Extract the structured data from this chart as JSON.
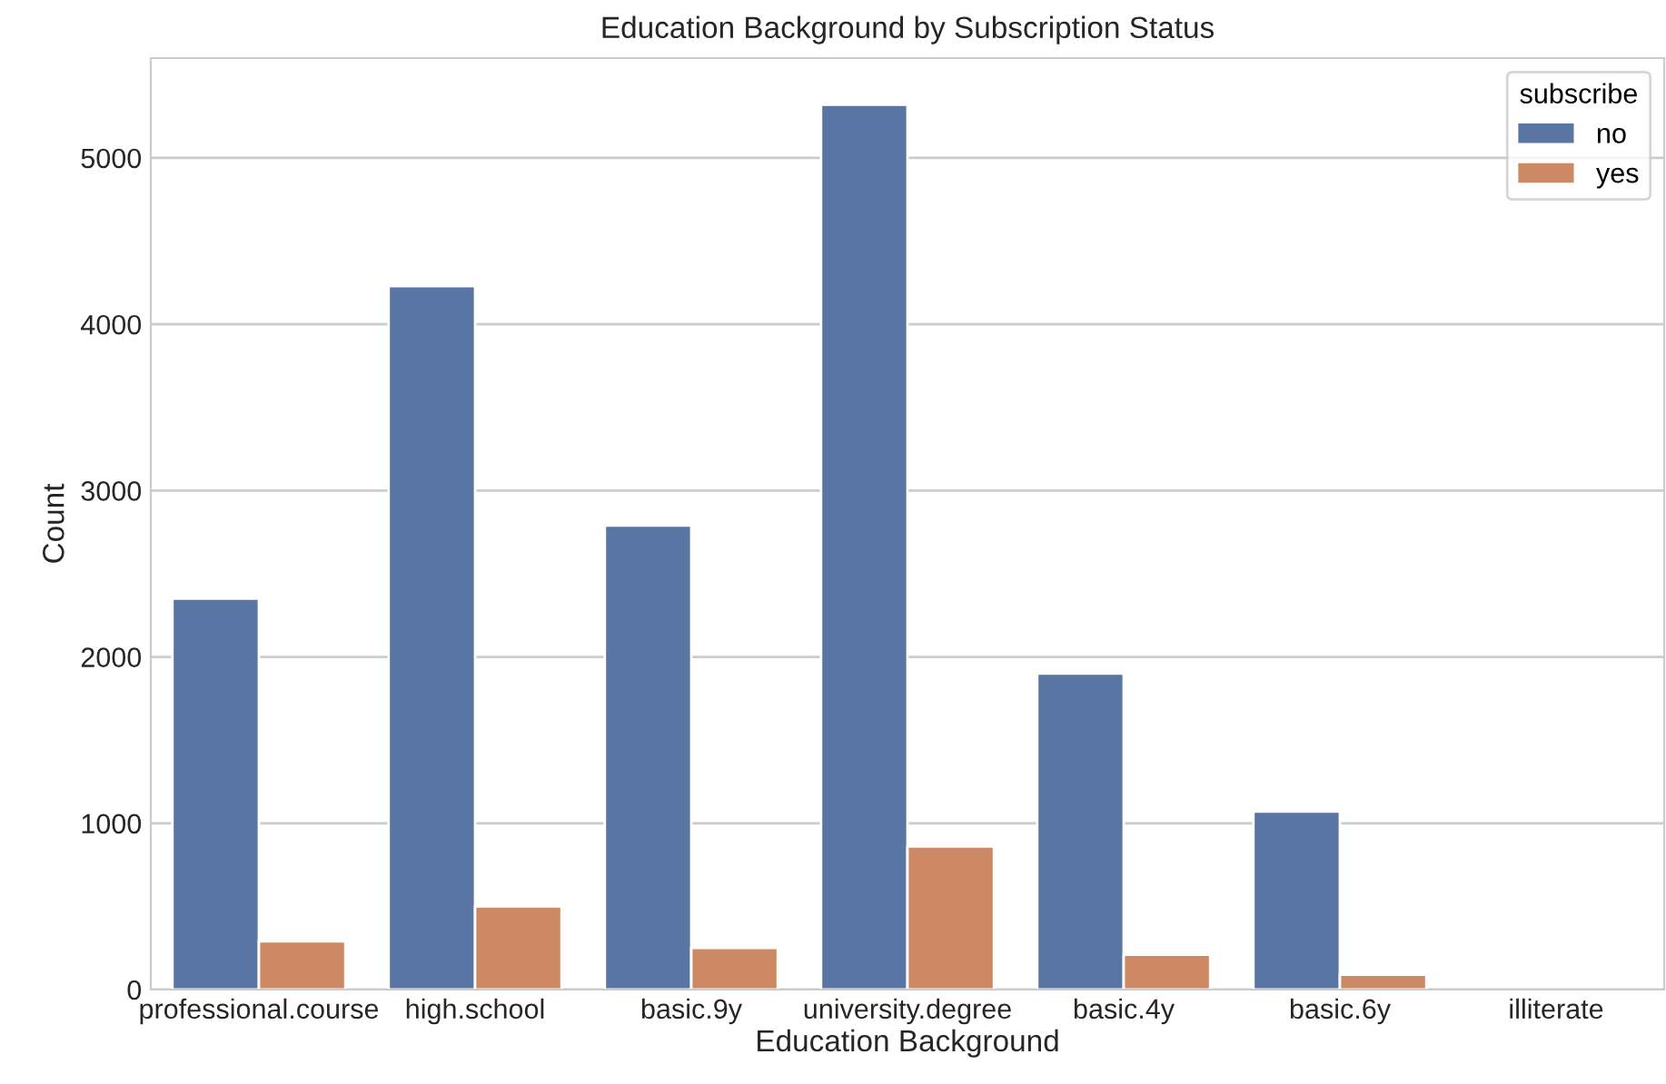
{
  "chart_data": {
    "type": "bar",
    "title": "Education Background by Subscription Status",
    "xlabel": "Education Background",
    "ylabel": "Count",
    "legend_title": "subscribe",
    "categories": [
      "professional.course",
      "high.school",
      "basic.9y",
      "university.degree",
      "basic.4y",
      "basic.6y",
      "illiterate"
    ],
    "series": [
      {
        "name": "no",
        "color": "#5975a4",
        "values": [
          2350,
          4230,
          2790,
          5320,
          1900,
          1070,
          null
        ]
      },
      {
        "name": "yes",
        "color": "#cc8963",
        "values": [
          290,
          500,
          250,
          860,
          210,
          90,
          null
        ]
      }
    ],
    "ylim": [
      0,
      5600
    ],
    "yticks": [
      0,
      1000,
      2000,
      3000,
      4000,
      5000
    ],
    "grid": "y",
    "legend": "top right"
  }
}
